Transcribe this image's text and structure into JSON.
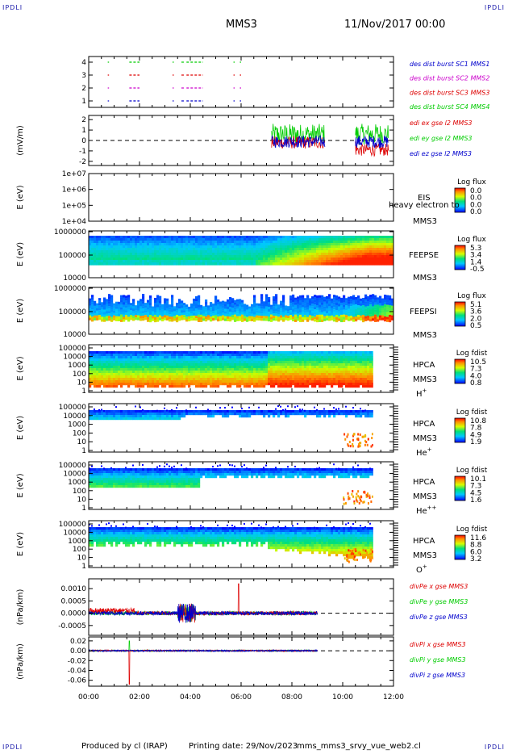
{
  "corner_logo": "IPDLI",
  "header": {
    "title": "MMS3",
    "date": "11/Nov/2017 00:00"
  },
  "footer": {
    "produced": "Produced by cl (IRAP)",
    "printing": "Printing date: 29/Nov/2023",
    "file": "mms_mms3_srvy_vue_web2.cl"
  },
  "colors": {
    "mms1": "#0000cc",
    "mms2": "#cc00cc",
    "mms3": "#dd0000",
    "mms4": "#00cc00",
    "x": "#dd0000",
    "y": "#00cc00",
    "z": "#0000cc"
  },
  "chart_data": [
    {
      "id": "burst",
      "type": "scatter",
      "y_ticks": [
        "1",
        "2",
        "3",
        "4"
      ],
      "legend": [
        {
          "label": "des dist burst SC1 MMS1",
          "color": "#0000cc"
        },
        {
          "label": "des dist burst SC2 MMS2",
          "color": "#cc00cc"
        },
        {
          "label": "des dist burst SC3 MMS3",
          "color": "#dd0000"
        },
        {
          "label": "des dist burst SC4 MMS4",
          "color": "#00cc00"
        }
      ],
      "intervals_hours": [
        [
          0.75,
          0.8
        ],
        [
          1.6,
          2.0
        ],
        [
          3.3,
          3.35
        ],
        [
          3.65,
          3.75
        ],
        [
          3.85,
          4.5
        ],
        [
          5.7,
          5.75
        ],
        [
          5.95,
          6.0
        ]
      ]
    },
    {
      "id": "edi",
      "type": "line",
      "ylabel": "(mV/m)",
      "y_ticks": [
        "2",
        "1",
        "0",
        "-1",
        "-2"
      ],
      "ylim": [
        -2.4,
        2.4
      ],
      "data_range_hours": [
        [
          7.2,
          9.3
        ],
        [
          10.5,
          11.8
        ]
      ],
      "legend": [
        {
          "label": "edi ex gse l2 MMS3",
          "color": "#dd0000"
        },
        {
          "label": "edi ey gse l2 MMS3",
          "color": "#00cc00"
        },
        {
          "label": "edi ez gse l2 MMS3",
          "color": "#0000cc"
        }
      ]
    },
    {
      "id": "eis",
      "type": "heatmap",
      "ylabel": "E (eV)",
      "y_ticks": [
        "1e+07",
        "1e+06",
        "1e+05",
        "1e+04"
      ],
      "instrument": "EIS",
      "spacecraft": "MMS3",
      "overlay_text": "heavy electron to",
      "colorbar_title": "Log flux",
      "colorbar_ticks": [
        "0.0",
        "0.0",
        "0.0",
        "0.0"
      ]
    },
    {
      "id": "feepse",
      "type": "heatmap",
      "ylabel": "E (eV)",
      "y_ticks": [
        "1000000",
        "100000",
        "10000"
      ],
      "instrument": "FEEPSE",
      "spacecraft": "MMS3",
      "colorbar_title": "Log flux",
      "colorbar_ticks": [
        "5.3",
        "3.4",
        "1.4",
        "-0.5"
      ]
    },
    {
      "id": "feepsi",
      "type": "heatmap",
      "ylabel": "E (eV)",
      "y_ticks": [
        "1000000",
        "100000",
        "10000"
      ],
      "instrument": "FEEPSI",
      "spacecraft": "MMS3",
      "colorbar_title": "Log flux",
      "colorbar_ticks": [
        "5.1",
        "3.6",
        "2.0",
        "0.5"
      ]
    },
    {
      "id": "hpca_h",
      "type": "heatmap",
      "ylabel": "E (eV)",
      "y_ticks": [
        "100000",
        "10000",
        "1000",
        "100",
        "10",
        "1"
      ],
      "instrument": "HPCA",
      "spacecraft": "MMS3",
      "species": "H",
      "species_charge": "+",
      "colorbar_title": "Log fdist",
      "colorbar_ticks": [
        "10.5",
        "7.3",
        "4.0",
        "0.8"
      ],
      "data_end_hours": 11.2
    },
    {
      "id": "hpca_he",
      "type": "heatmap",
      "ylabel": "E (eV)",
      "y_ticks": [
        "100000",
        "10000",
        "1000",
        "100",
        "10",
        "1"
      ],
      "instrument": "HPCA",
      "spacecraft": "MMS3",
      "species": "He",
      "species_charge": "+",
      "colorbar_title": "Log fdist",
      "colorbar_ticks": [
        "10.8",
        "7.8",
        "4.9",
        "1.9"
      ],
      "data_end_hours": 11.2
    },
    {
      "id": "hpca_hepp",
      "type": "heatmap",
      "ylabel": "E (eV)",
      "y_ticks": [
        "100000",
        "10000",
        "1000",
        "100",
        "10",
        "1"
      ],
      "instrument": "HPCA",
      "spacecraft": "MMS3",
      "species": "He",
      "species_charge": "++",
      "colorbar_title": "Log fdist",
      "colorbar_ticks": [
        "10.1",
        "7.3",
        "4.5",
        "1.6"
      ],
      "data_end_hours": 11.2
    },
    {
      "id": "hpca_o",
      "type": "heatmap",
      "ylabel": "E (eV)",
      "y_ticks": [
        "100000",
        "10000",
        "1000",
        "100",
        "10",
        "1"
      ],
      "instrument": "HPCA",
      "spacecraft": "MMS3",
      "species": "O",
      "species_charge": "+",
      "colorbar_title": "Log fdist",
      "colorbar_ticks": [
        "11.6",
        "8.8",
        "6.0",
        "3.2"
      ],
      "data_end_hours": 11.2
    },
    {
      "id": "divpe",
      "type": "line",
      "ylabel": "(nPa/km)",
      "y_ticks": [
        "0.0010",
        "0.0005",
        "0.0000",
        "-0.0005"
      ],
      "ylim": [
        -0.0009,
        0.0014
      ],
      "data_end_hours": 9.0,
      "legend": [
        {
          "label": "divPe x gse MMS3",
          "color": "#dd0000"
        },
        {
          "label": "divPe y gse MMS3",
          "color": "#00cc00"
        },
        {
          "label": "divPe z gse MMS3",
          "color": "#0000cc"
        }
      ]
    },
    {
      "id": "divpi",
      "type": "line",
      "ylabel": "(nPa/km)",
      "y_ticks": [
        "0.02",
        "0.00",
        "-0.02",
        "-0.04",
        "-0.06"
      ],
      "ylim": [
        -0.072,
        0.028
      ],
      "data_end_hours": 9.0,
      "legend": [
        {
          "label": "divPi x gse MMS3",
          "color": "#dd0000"
        },
        {
          "label": "divPi y gse MMS3",
          "color": "#00cc00"
        },
        {
          "label": "divPi z gse MMS3",
          "color": "#0000cc"
        }
      ]
    }
  ],
  "x_axis": {
    "ticks": [
      "00:00",
      "02:00",
      "04:00",
      "06:00",
      "08:00",
      "10:00",
      "12:00"
    ],
    "range_hours": [
      0,
      12
    ]
  }
}
